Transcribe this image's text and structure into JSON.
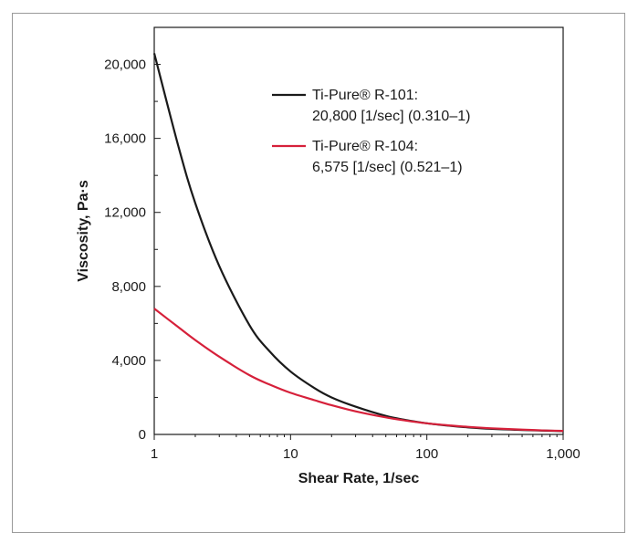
{
  "chart_data": {
    "type": "line",
    "xlabel": "Shear Rate, 1/sec",
    "ylabel": "Viscosity, Pa·s",
    "x_scale": "log",
    "xlim": [
      1,
      1000
    ],
    "ylim": [
      0,
      22000
    ],
    "x_ticks": [
      1,
      10,
      100,
      1000
    ],
    "x_tick_labels": [
      "1",
      "10",
      "100",
      "1,000"
    ],
    "y_ticks": [
      0,
      4000,
      8000,
      12000,
      16000,
      20000
    ],
    "y_tick_labels": [
      "0",
      "4,000",
      "8,000",
      "12,000",
      "16,000",
      "20,000"
    ],
    "y_minor_ticks": [
      2000,
      6000,
      10000,
      14000,
      18000
    ],
    "grid": false,
    "legend_position": "top-right",
    "series": [
      {
        "name": "Ti-Pure® R-101:",
        "legend_detail": "20,800 [1/sec] (0.310–1)",
        "color": "#1a1a1a",
        "x": [
          1,
          1.5,
          2,
          3,
          5,
          7,
          10,
          15,
          20,
          30,
          50,
          70,
          100,
          150,
          200,
          300,
          500,
          700,
          1000
        ],
        "y": [
          20600,
          15600,
          12500,
          9100,
          5900,
          4500,
          3400,
          2500,
          2000,
          1500,
          1000,
          780,
          600,
          460,
          380,
          300,
          240,
          210,
          180
        ]
      },
      {
        "name": "Ti-Pure® R-104:",
        "legend_detail": "6,575 [1/sec] (0.521–1)",
        "color": "#d6203a",
        "x": [
          1,
          1.5,
          2,
          3,
          5,
          7,
          10,
          15,
          20,
          30,
          50,
          70,
          100,
          150,
          200,
          300,
          500,
          700,
          1000
        ],
        "y": [
          6800,
          5800,
          5100,
          4200,
          3200,
          2700,
          2250,
          1850,
          1580,
          1250,
          920,
          750,
          600,
          480,
          410,
          330,
          260,
          220,
          190
        ]
      }
    ]
  }
}
